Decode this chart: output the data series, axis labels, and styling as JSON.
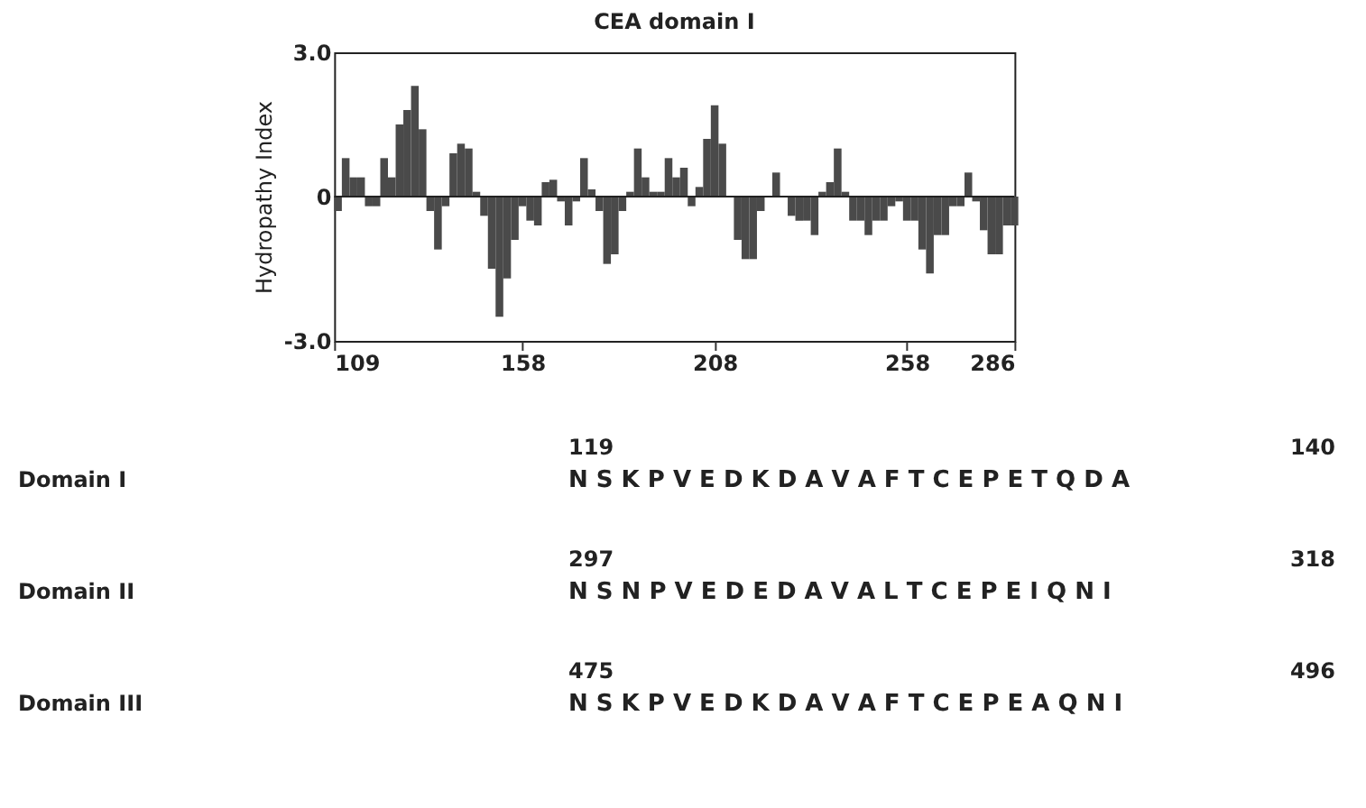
{
  "chart_data": {
    "type": "bar",
    "title": "CEA domain I",
    "ylabel": "Hydropathy Index",
    "x": [
      109,
      111,
      113,
      115,
      117,
      119,
      121,
      123,
      125,
      127,
      129,
      131,
      133,
      135,
      137,
      139,
      141,
      143,
      145,
      147,
      149,
      151,
      153,
      155,
      157,
      159,
      161,
      163,
      165,
      167,
      169,
      171,
      173,
      175,
      177,
      179,
      181,
      183,
      185,
      187,
      189,
      191,
      193,
      195,
      197,
      199,
      201,
      203,
      205,
      207,
      209,
      211,
      213,
      215,
      217,
      219,
      221,
      223,
      225,
      227,
      229,
      231,
      233,
      235,
      237,
      239,
      241,
      243,
      245,
      247,
      249,
      251,
      253,
      255,
      257,
      259,
      261,
      263,
      265,
      267,
      269,
      271,
      273,
      275,
      277,
      279,
      281,
      283,
      285
    ],
    "values": [
      -0.3,
      0.8,
      0.4,
      0.4,
      -0.2,
      -0.2,
      0.8,
      0.4,
      1.5,
      1.8,
      2.3,
      1.4,
      -0.3,
      -1.1,
      -0.2,
      0.9,
      1.1,
      1.0,
      0.1,
      -0.4,
      -1.5,
      -2.5,
      -1.7,
      -0.9,
      -0.2,
      -0.5,
      -0.6,
      0.3,
      0.35,
      -0.1,
      -0.6,
      -0.1,
      0.8,
      0.15,
      -0.3,
      -1.4,
      -1.2,
      -0.3,
      0.1,
      1.0,
      0.4,
      0.1,
      0.1,
      0.8,
      0.4,
      0.6,
      -0.2,
      0.2,
      1.2,
      1.9,
      1.1,
      0.0,
      -0.9,
      -1.3,
      -1.3,
      -0.3,
      0.0,
      0.5,
      0.0,
      -0.4,
      -0.5,
      -0.5,
      -0.8,
      0.1,
      0.3,
      1.0,
      0.1,
      -0.5,
      -0.5,
      -0.8,
      -0.5,
      -0.5,
      -0.2,
      -0.1,
      -0.5,
      -0.5,
      -1.1,
      -1.6,
      -0.8,
      -0.8,
      -0.2,
      -0.2,
      0.5,
      -0.1,
      -0.7,
      -1.2,
      -1.2,
      -0.6,
      -0.6
    ],
    "color": "#4a4a4a",
    "xlim": [
      109,
      286
    ],
    "xticks": [
      109,
      158,
      208,
      258,
      286
    ],
    "ylim": [
      -3,
      3
    ],
    "yticks": [
      {
        "value": -3,
        "label": "-3.0"
      },
      0,
      {
        "value": 3,
        "label": "3.0"
      }
    ],
    "ref_lines": [
      {
        "axis": "y",
        "value": 0
      }
    ],
    "annotations": [
      "119",
      "140",
      "Domain I",
      "N S K P V E D K D A V A F T C E P E T Q D A",
      "297",
      "318",
      "Domain II",
      "N S N P V E D E D A V A L T C E P E I Q N I",
      "475",
      "496",
      "Domain III",
      "N S K P V E D K D A V A F T C E P E A Q N I"
    ]
  }
}
